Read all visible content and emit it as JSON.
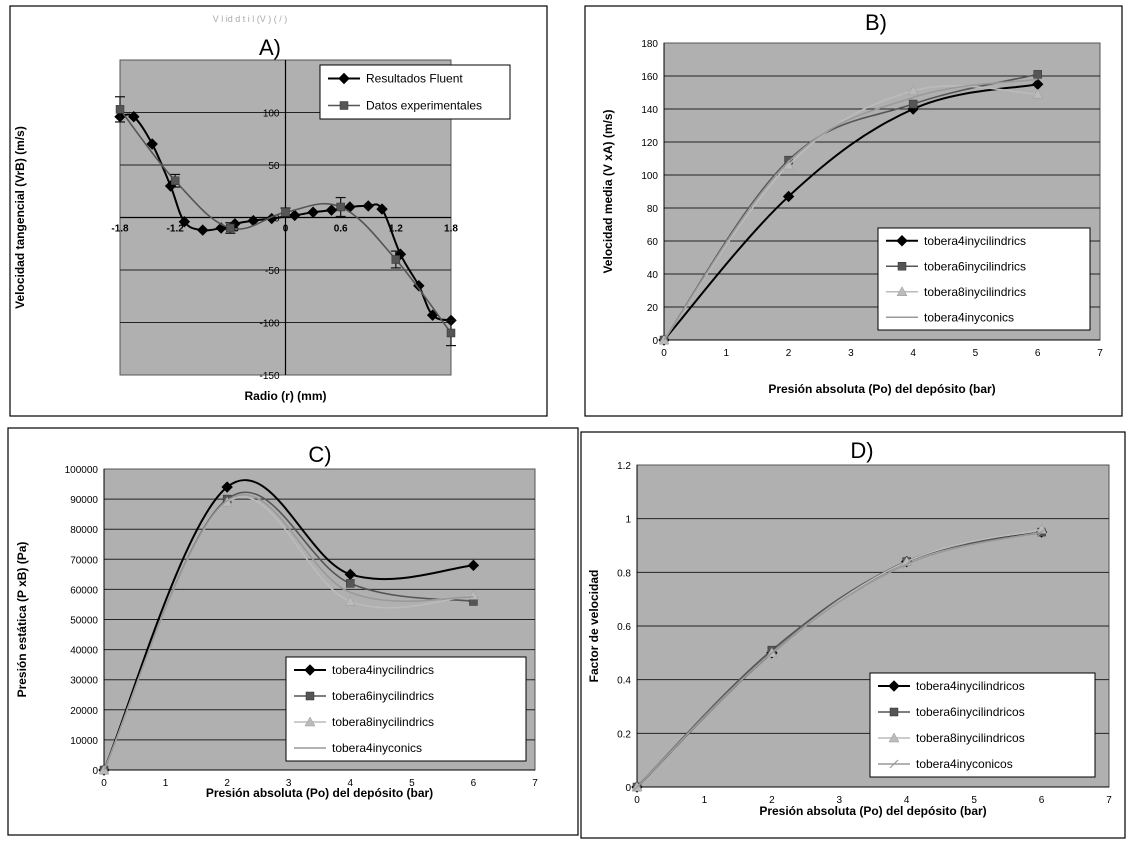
{
  "chart_data": [
    {
      "panel": "A",
      "type": "line",
      "title": "A)",
      "faint_header": "V  l   id d t    i l (V  ) (  / )",
      "xlabel": "Radio (r) (mm)",
      "ylabel": "Velocidad tangencial (VrB) (m/s)",
      "xlim": [
        -1.8,
        1.8
      ],
      "ylim": [
        -150,
        150
      ],
      "xticks": [
        "-1.8",
        "-1.2",
        "-0.6",
        "0",
        "0.6",
        "1.2",
        "1.8"
      ],
      "yticks": [
        "-150",
        "-100",
        "-50",
        "0",
        "50",
        "100"
      ],
      "grid": true,
      "legend_position": "top-right",
      "series": [
        {
          "name": "Resultados Fluent",
          "color": "#000000",
          "marker": "diamond",
          "x": [
            -1.8,
            -1.65,
            -1.45,
            -1.25,
            -1.1,
            -0.9,
            -0.7,
            -0.55,
            -0.35,
            -0.15,
            0.1,
            0.3,
            0.5,
            0.7,
            0.9,
            1.05,
            1.25,
            1.45,
            1.6,
            1.8
          ],
          "y": [
            96,
            96,
            70,
            30,
            -4,
            -12,
            -10,
            -6,
            -3,
            -1,
            2,
            5,
            7,
            10,
            11,
            8,
            -35,
            -65,
            -93,
            -98
          ]
        },
        {
          "name": "Datos experimentales",
          "color": "#555555",
          "marker": "square",
          "error_bars": true,
          "x": [
            -1.8,
            -1.2,
            -0.6,
            0,
            0.6,
            1.2,
            1.8
          ],
          "y": [
            103,
            35,
            -10,
            5,
            10,
            -40,
            -110
          ],
          "err": [
            12,
            6,
            5,
            4,
            9,
            8,
            12
          ]
        }
      ]
    },
    {
      "panel": "B",
      "type": "line",
      "title": "B)",
      "xlabel": "Presión absoluta (Po) del depósito (bar)",
      "ylabel": "Velocidad media (V xA) (m/s)",
      "xlim": [
        0,
        7
      ],
      "ylim": [
        0,
        180
      ],
      "xticks": [
        "0",
        "1",
        "2",
        "3",
        "4",
        "5",
        "6",
        "7"
      ],
      "yticks": [
        "0",
        "20",
        "40",
        "60",
        "80",
        "100",
        "120",
        "140",
        "160",
        "180"
      ],
      "grid": true,
      "legend_position": "bottom-right",
      "series": [
        {
          "name": "tobera4inycilindrics",
          "color": "#000000",
          "marker": "diamond",
          "x": [
            0,
            2,
            4,
            6
          ],
          "y": [
            0,
            87,
            140,
            155
          ]
        },
        {
          "name": "tobera6inycilindrics",
          "color": "#555555",
          "marker": "square",
          "x": [
            0,
            2,
            4,
            6
          ],
          "y": [
            0,
            109,
            143,
            161
          ]
        },
        {
          "name": "tobera8inycilindrics",
          "color": "#bbbbbb",
          "marker": "triangle",
          "x": [
            0,
            2,
            4,
            6
          ],
          "y": [
            0,
            106,
            151,
            149
          ]
        },
        {
          "name": "tobera4inyconics",
          "color": "#9a9a9a",
          "marker": "none",
          "x": [
            0,
            2,
            4,
            6
          ],
          "y": [
            0,
            108,
            147,
            158
          ]
        }
      ]
    },
    {
      "panel": "C",
      "type": "line",
      "title": "C)",
      "xlabel": "Presión absoluta (Po) del depósito (bar)",
      "ylabel": "Presión estática (P xB) (Pa)",
      "xlim": [
        0,
        7
      ],
      "ylim": [
        0,
        100000
      ],
      "xticks": [
        "0",
        "1",
        "2",
        "3",
        "4",
        "5",
        "6",
        "7"
      ],
      "yticks": [
        "0",
        "10000",
        "20000",
        "30000",
        "40000",
        "50000",
        "60000",
        "70000",
        "80000",
        "90000",
        "100000"
      ],
      "grid": true,
      "legend_position": "bottom-right",
      "series": [
        {
          "name": "tobera4inycilindrics",
          "color": "#000000",
          "marker": "diamond",
          "x": [
            0,
            2,
            4,
            6
          ],
          "y": [
            0,
            94000,
            65000,
            68000
          ]
        },
        {
          "name": "tobera6inycilindrics",
          "color": "#555555",
          "marker": "square",
          "x": [
            0,
            2,
            4,
            6
          ],
          "y": [
            0,
            90000,
            62000,
            56000
          ]
        },
        {
          "name": "tobera8inycilindrics",
          "color": "#bbbbbb",
          "marker": "triangle",
          "x": [
            0,
            2,
            4,
            6
          ],
          "y": [
            0,
            89000,
            56000,
            58000
          ]
        },
        {
          "name": "tobera4inyconics",
          "color": "#9a9a9a",
          "marker": "none",
          "x": [
            0,
            2,
            4,
            6
          ],
          "y": [
            0,
            89500,
            59000,
            57500
          ]
        }
      ]
    },
    {
      "panel": "D",
      "type": "line",
      "title": "D)",
      "xlabel": "Presión absoluta (Po) del depósito (bar)",
      "ylabel": "Factor de velocidad",
      "xlim": [
        0,
        7
      ],
      "ylim": [
        0,
        1.2
      ],
      "xticks": [
        "0",
        "1",
        "2",
        "3",
        "4",
        "5",
        "6",
        "7"
      ],
      "yticks": [
        "0",
        "0.2",
        "0.4",
        "0.6",
        "0.8",
        "1",
        "1.2"
      ],
      "grid": true,
      "legend_position": "bottom-right",
      "series": [
        {
          "name": "tobera4inycilindricos",
          "color": "#000000",
          "marker": "diamond",
          "x": [
            0,
            2,
            4,
            6
          ],
          "y": [
            0,
            0.5,
            0.84,
            0.95
          ]
        },
        {
          "name": "tobera6inycilindricos",
          "color": "#555555",
          "marker": "square",
          "x": [
            0,
            2,
            4,
            6
          ],
          "y": [
            0,
            0.51,
            0.84,
            0.95
          ]
        },
        {
          "name": "tobera8inycilindricos",
          "color": "#bbbbbb",
          "marker": "triangle",
          "x": [
            0,
            2,
            4,
            6
          ],
          "y": [
            0,
            0.5,
            0.84,
            0.96
          ]
        },
        {
          "name": "tobera4inyconicos",
          "color": "#9a9a9a",
          "marker": "cross",
          "x": [
            0,
            2,
            4,
            6
          ],
          "y": [
            0,
            0.5,
            0.83,
            0.95
          ]
        }
      ]
    }
  ],
  "style": {
    "plot_bg": "#b0b0b0",
    "grid_color": "#222222",
    "frame_color": "#000000"
  }
}
